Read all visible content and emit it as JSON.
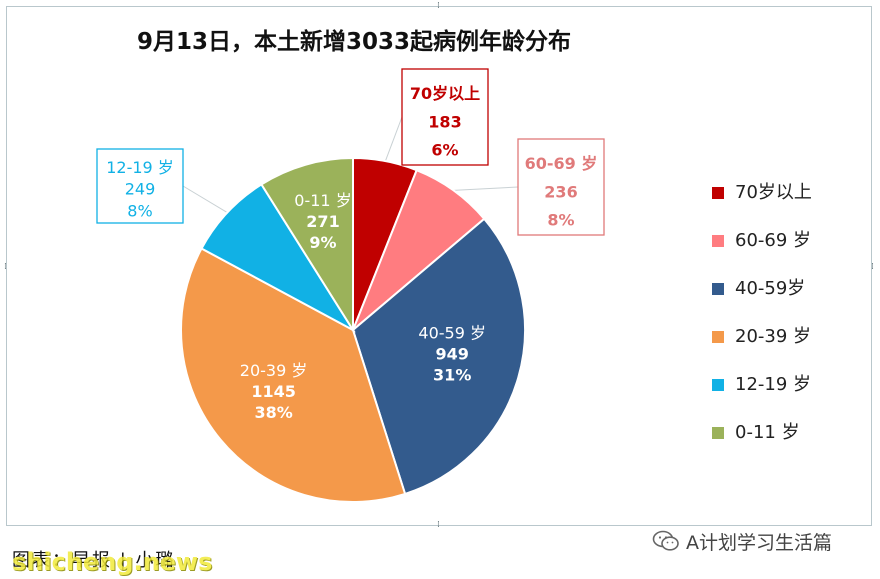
{
  "chart_data": {
    "type": "pie",
    "title": "9月13日，本土新增3033起病例年龄分布",
    "slices": [
      {
        "label": "70岁以上",
        "tag": "70岁以上",
        "value": 183,
        "percent": "6%",
        "color": "#c00000"
      },
      {
        "label": "60-69 岁",
        "tag": "60-69 岁",
        "value": 236,
        "percent": "8%",
        "color": "#ff7c80"
      },
      {
        "label": "40-59岁",
        "tag": "40-59 岁",
        "value": 949,
        "percent": "31%",
        "color": "#335b8d"
      },
      {
        "label": "20-39 岁",
        "tag": "20-39 岁",
        "value": 1145,
        "percent": "38%",
        "color": "#f4994a"
      },
      {
        "label": "12-19 岁",
        "tag": "12-19 岁",
        "value": 249,
        "percent": "8%",
        "color": "#11b1e5"
      },
      {
        "label": "0-11 岁",
        "tag": "0-11 岁",
        "value": 271,
        "percent": "9%",
        "color": "#9bb25a"
      }
    ],
    "legend_position": "right"
  },
  "caption": "图表：早报 | 小璐",
  "watermark": "shicheng.news",
  "account": "A计划学习生活篇",
  "account_icon": "wechat-icon"
}
